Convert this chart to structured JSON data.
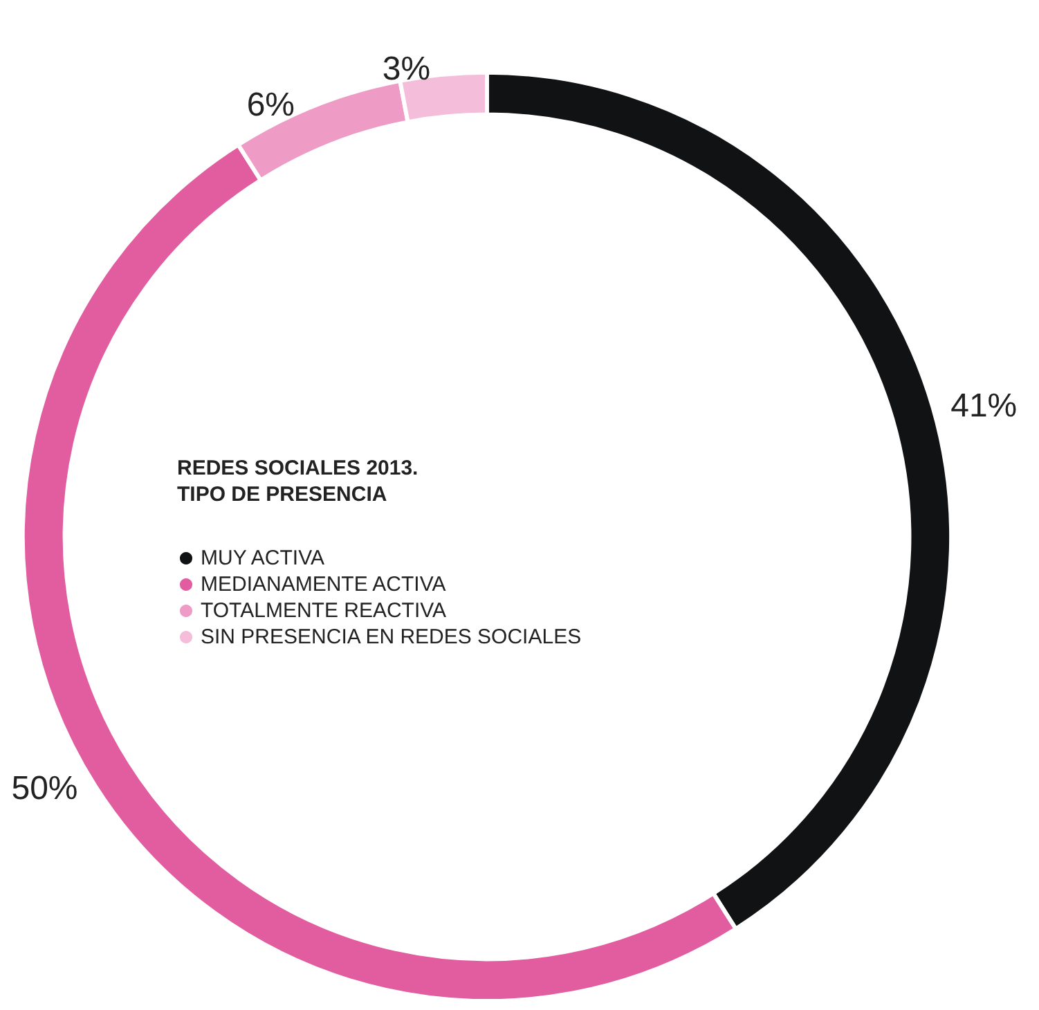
{
  "chart_data": {
    "type": "donut",
    "title": "REDES SOCIALES 2013.\nTIPO DE PRESENCIA",
    "categories": [
      "MUY ACTIVA",
      "MEDIANAMENTE ACTIVA",
      "TOTALMENTE REACTIVA",
      "SIN PRESENCIA EN REDES SOCIALES"
    ],
    "values": [
      41,
      50,
      6,
      3
    ],
    "colors": [
      "#111214",
      "#e25d9f",
      "#ee9bc5",
      "#f4bdd9"
    ],
    "value_labels": [
      "41%",
      "50%",
      "6%",
      "3%"
    ],
    "legend": "left"
  }
}
